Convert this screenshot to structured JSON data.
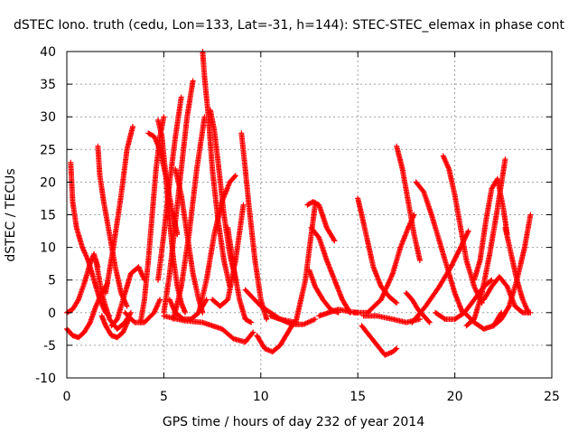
{
  "chart_data": {
    "type": "scatter",
    "title": "dSTEC Iono. truth (cedu, Lon=133, Lat=-31, h=144): STEC-STEC_elemax in phase cont",
    "xlabel": "GPS time / hours of day 232 of year 2014",
    "ylabel": "dSTEC  / TECUs",
    "xlim": [
      0,
      25
    ],
    "ylim": [
      -10,
      40
    ],
    "xticks": [
      0,
      5,
      10,
      15,
      20,
      25
    ],
    "yticks": [
      -10,
      -5,
      0,
      5,
      10,
      15,
      20,
      25,
      30,
      35,
      40
    ],
    "grid": true,
    "marker": "+",
    "color": "#ff0000",
    "series": [
      {
        "x": [
          0.0,
          0.3,
          0.6,
          0.9,
          1.2,
          1.5,
          1.8,
          2.1
        ],
        "y": [
          -2.5,
          -3.5,
          -3.8,
          -3.0,
          -1.5,
          1.0,
          3.0,
          4.5
        ]
      },
      {
        "x": [
          0.2,
          0.3,
          0.5,
          0.8,
          1.1,
          1.4,
          1.7,
          2.0,
          2.2
        ],
        "y": [
          23.0,
          17.0,
          13.0,
          10.0,
          8.0,
          5.0,
          2.0,
          0.0,
          -0.5
        ]
      },
      {
        "x": [
          0.0,
          0.3,
          0.6,
          0.9,
          1.2,
          1.4,
          1.6
        ],
        "y": [
          0.0,
          0.5,
          2.0,
          4.5,
          7.5,
          9.0,
          7.0
        ]
      },
      {
        "x": [
          1.5,
          1.8,
          2.2,
          2.6,
          3.0,
          3.3
        ],
        "y": [
          8.0,
          3.0,
          -1.0,
          -2.5,
          -1.5,
          0.0
        ]
      },
      {
        "x": [
          1.6,
          1.7,
          1.9,
          2.2,
          2.5,
          2.8,
          3.1
        ],
        "y": [
          25.5,
          21.0,
          17.0,
          12.0,
          7.0,
          3.0,
          1.0
        ]
      },
      {
        "x": [
          1.8,
          2.0,
          2.3,
          2.6,
          2.9,
          3.2
        ],
        "y": [
          -0.5,
          -2.0,
          -3.5,
          -3.8,
          -3.0,
          -1.0
        ]
      },
      {
        "x": [
          2.0,
          2.4,
          2.8,
          3.1,
          3.4
        ],
        "y": [
          3.0,
          10.0,
          18.0,
          25.0,
          28.5
        ]
      },
      {
        "x": [
          2.3,
          2.6,
          3.0,
          3.3,
          3.7,
          4.0
        ],
        "y": [
          -2.0,
          -1.0,
          3.0,
          6.0,
          7.0,
          5.0
        ]
      },
      {
        "x": [
          3.0,
          3.5,
          4.0,
          4.5,
          4.8
        ],
        "y": [
          0.0,
          -1.5,
          -1.5,
          0.0,
          2.0
        ]
      },
      {
        "x": [
          3.8,
          4.0,
          4.2,
          4.4,
          4.6,
          4.8,
          5.0
        ],
        "y": [
          -1.5,
          2.0,
          8.0,
          15.0,
          22.0,
          27.0,
          30.0
        ]
      },
      {
        "x": [
          4.2,
          4.5,
          4.8,
          5.1,
          5.4,
          5.7
        ],
        "y": [
          27.5,
          27.0,
          25.0,
          21.0,
          16.0,
          12.0
        ]
      },
      {
        "x": [
          4.7,
          4.9,
          5.1,
          5.3,
          5.5,
          5.7,
          5.9,
          6.1
        ],
        "y": [
          29.5,
          27.0,
          21.0,
          14.0,
          8.0,
          4.0,
          1.5,
          0.0
        ]
      },
      {
        "x": [
          4.7,
          5.0,
          5.3,
          5.6,
          5.9
        ],
        "y": [
          5.0,
          12.0,
          20.0,
          27.0,
          33.0
        ]
      },
      {
        "x": [
          5.0,
          5.3,
          5.6,
          5.9,
          6.2,
          6.5
        ],
        "y": [
          0.0,
          6.0,
          14.0,
          22.0,
          30.0,
          35.5
        ]
      },
      {
        "x": [
          5.6,
          5.9,
          6.2,
          6.5,
          6.8,
          7.0
        ],
        "y": [
          22.0,
          18.0,
          12.0,
          6.0,
          2.0,
          0.0
        ]
      },
      {
        "x": [
          5.3,
          5.6,
          6.0,
          6.4,
          6.8,
          7.2
        ],
        "y": [
          2.0,
          0.0,
          -1.0,
          -1.0,
          0.0,
          2.0
        ]
      },
      {
        "x": [
          5.5,
          5.9,
          6.3,
          6.7,
          7.1
        ],
        "y": [
          -1.0,
          4.0,
          12.0,
          22.0,
          30.0
        ]
      },
      {
        "x": [
          7.0,
          7.1,
          7.3,
          7.5,
          7.8,
          8.1,
          8.4
        ],
        "y": [
          40.0,
          36.0,
          30.0,
          22.0,
          14.0,
          8.0,
          4.0
        ]
      },
      {
        "x": [
          7.4,
          7.6,
          7.8,
          8.1,
          8.4,
          8.7
        ],
        "y": [
          31.0,
          28.0,
          23.0,
          15.0,
          9.0,
          5.0
        ]
      },
      {
        "x": [
          6.8,
          7.2,
          7.6,
          8.0,
          8.4,
          8.7
        ],
        "y": [
          0.0,
          5.0,
          12.0,
          17.0,
          20.0,
          21.0
        ]
      },
      {
        "x": [
          7.5,
          7.9,
          8.3,
          8.7,
          9.1
        ],
        "y": [
          2.0,
          1.0,
          2.0,
          8.0,
          16.5
        ]
      },
      {
        "x": [
          8.3,
          8.6,
          8.9,
          9.2,
          9.5
        ],
        "y": [
          13.0,
          7.0,
          2.0,
          -1.0,
          -1.5
        ]
      },
      {
        "x": [
          9.0,
          9.2,
          9.4,
          9.7,
          10.0,
          10.3
        ],
        "y": [
          27.5,
          22.0,
          16.0,
          8.0,
          2.0,
          -1.0
        ]
      },
      {
        "x": [
          5.0,
          6.0,
          7.0,
          8.0,
          8.6,
          9.2,
          9.6
        ],
        "y": [
          -0.5,
          -1.2,
          -1.5,
          -2.5,
          -4.0,
          -4.5,
          -3.0
        ]
      },
      {
        "x": [
          9.8,
          10.2,
          10.6,
          11.0,
          11.4,
          11.7
        ],
        "y": [
          -3.5,
          -5.5,
          -6.0,
          -5.0,
          -3.0,
          -1.5
        ]
      },
      {
        "x": [
          9.2,
          10.0,
          11.0,
          11.8,
          12.3,
          12.6,
          12.8
        ],
        "y": [
          3.5,
          1.0,
          -1.0,
          -1.5,
          5.0,
          12.0,
          16.5
        ]
      },
      {
        "x": [
          10.5,
          11.0,
          11.6,
          12.2,
          12.8
        ],
        "y": [
          -0.5,
          -1.0,
          -1.8,
          -1.8,
          -1.0
        ]
      },
      {
        "x": [
          12.4,
          12.7,
          13.0,
          13.4,
          13.8
        ],
        "y": [
          16.5,
          17.0,
          16.5,
          13.0,
          11.0
        ]
      },
      {
        "x": [
          12.6,
          13.0,
          13.4,
          13.8,
          14.2,
          14.6
        ],
        "y": [
          13.0,
          11.5,
          8.0,
          5.0,
          2.0,
          0.0
        ]
      },
      {
        "x": [
          12.5,
          12.8,
          13.2,
          13.6,
          14.0
        ],
        "y": [
          6.5,
          4.0,
          2.0,
          0.5,
          0.0
        ]
      },
      {
        "x": [
          13.0,
          13.5,
          14.0,
          14.5,
          15.0
        ],
        "y": [
          -0.5,
          0.0,
          0.5,
          0.2,
          0.0
        ]
      },
      {
        "x": [
          15.0,
          15.2,
          15.5,
          15.8,
          16.2,
          16.6,
          17.0
        ],
        "y": [
          17.5,
          15.0,
          11.0,
          7.0,
          4.0,
          2.5,
          1.5
        ]
      },
      {
        "x": [
          15.2,
          15.6,
          16.0,
          16.4,
          16.8,
          17.0
        ],
        "y": [
          -2.0,
          -3.5,
          -5.0,
          -6.5,
          -6.0,
          -5.5
        ]
      },
      {
        "x": [
          14.8,
          15.5,
          16.2,
          16.8,
          17.2,
          17.6,
          17.9
        ],
        "y": [
          0.0,
          0.0,
          2.0,
          6.0,
          10.0,
          13.0,
          15.0
        ]
      },
      {
        "x": [
          17.0,
          17.3,
          17.6,
          17.9,
          18.2
        ],
        "y": [
          25.5,
          22.0,
          17.0,
          12.0,
          8.0
        ]
      },
      {
        "x": [
          15.3,
          16.0,
          16.8,
          17.5,
          18.2
        ],
        "y": [
          -0.5,
          -0.5,
          -1.0,
          -1.5,
          -1.0
        ]
      },
      {
        "x": [
          17.5,
          17.8,
          18.1,
          18.4,
          18.7
        ],
        "y": [
          3.0,
          2.0,
          0.5,
          -0.5,
          -1.5
        ]
      },
      {
        "x": [
          18.0,
          18.4,
          18.8,
          19.2,
          19.6,
          20.0,
          20.4
        ],
        "y": [
          20.0,
          18.5,
          15.0,
          11.0,
          7.0,
          3.0,
          0.0
        ]
      },
      {
        "x": [
          17.8,
          18.5,
          19.2,
          19.8,
          20.3,
          20.7
        ],
        "y": [
          -1.5,
          1.0,
          4.0,
          7.0,
          10.0,
          12.5
        ]
      },
      {
        "x": [
          19.4,
          19.7,
          20.0,
          20.3,
          20.6,
          21.0,
          21.4
        ],
        "y": [
          24.0,
          22.0,
          18.0,
          13.0,
          8.0,
          4.0,
          1.5
        ]
      },
      {
        "x": [
          19.0,
          19.5,
          20.0,
          20.5,
          21.0,
          21.5,
          21.9
        ],
        "y": [
          0.0,
          -1.0,
          -1.0,
          0.0,
          2.0,
          4.0,
          5.0
        ]
      },
      {
        "x": [
          20.6,
          21.0,
          21.4,
          21.8,
          22.2,
          22.6
        ],
        "y": [
          -2.0,
          -1.0,
          3.0,
          9.0,
          16.0,
          23.5
        ]
      },
      {
        "x": [
          21.0,
          21.3,
          21.6,
          21.9,
          22.2,
          22.5,
          22.7
        ],
        "y": [
          5.0,
          8.0,
          14.0,
          19.0,
          20.5,
          16.0,
          12.0
        ]
      },
      {
        "x": [
          21.5,
          21.9,
          22.3,
          22.7,
          23.1,
          23.5,
          23.9
        ],
        "y": [
          2.0,
          4.0,
          5.5,
          4.0,
          1.0,
          0.0,
          0.0
        ]
      },
      {
        "x": [
          22.0,
          22.4,
          22.8,
          23.2,
          23.6,
          23.9
        ],
        "y": [
          -2.0,
          -1.0,
          1.0,
          5.0,
          10.0,
          15.0
        ]
      },
      {
        "x": [
          20.5,
          21.0,
          21.5,
          22.0,
          22.4
        ],
        "y": [
          0.0,
          -1.5,
          -2.5,
          -2.0,
          0.0
        ]
      },
      {
        "x": [
          22.6,
          22.9,
          23.2,
          23.5,
          23.8
        ],
        "y": [
          13.0,
          9.0,
          5.0,
          2.0,
          0.0
        ]
      }
    ]
  }
}
